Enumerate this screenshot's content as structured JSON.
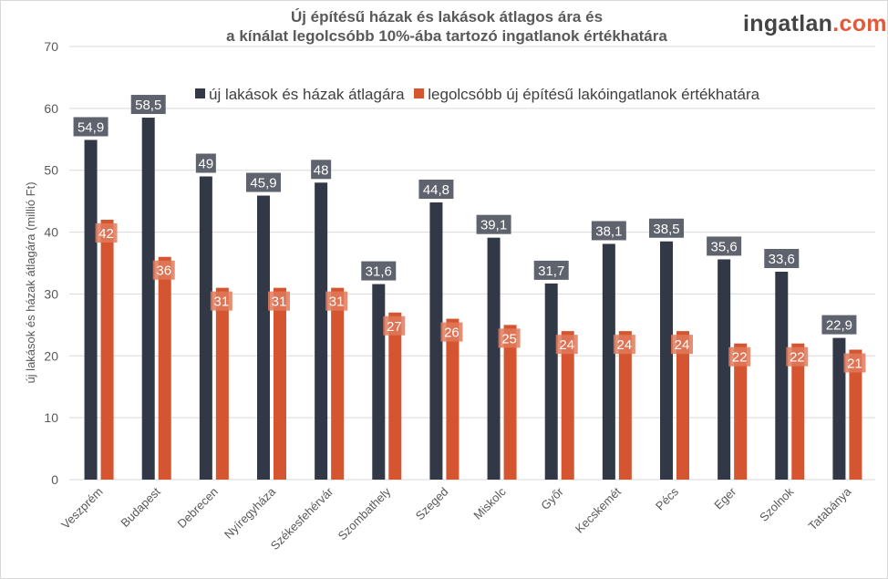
{
  "logo": {
    "main": "ingatlan",
    "suffix": ".com"
  },
  "chart_data": {
    "type": "bar",
    "title": "Új építésű házak és lakások átlagos ára és a kínálat legolcsóbb 10%-ába tartozó ingatlanok értékhatára",
    "title_lines": [
      "Új építésű házak és lakások átlagos ára és",
      "a kínálat legolcsóbb 10%-ába tartozó ingatlanok értékhatára"
    ],
    "xlabel": "",
    "ylabel": "új lakások és házak átlagára (millió Ft)",
    "ylim": [
      0,
      70
    ],
    "yticks": [
      0,
      10,
      20,
      30,
      40,
      50,
      60,
      70
    ],
    "grid": true,
    "legend_position": "top-center",
    "categories": [
      "Veszprém",
      "Budapest",
      "Debrecen",
      "Nyíregyháza",
      "Székesfehérvár",
      "Szombathely",
      "Szeged",
      "Miskolc",
      "Győr",
      "Kecskemét",
      "Pécs",
      "Eger",
      "Szolnok",
      "Tatabánya"
    ],
    "series": [
      {
        "name": "új lakások és házak átlagára",
        "color": "#323845",
        "label_bg": "#5f636e",
        "values": [
          54.9,
          58.5,
          49,
          45.9,
          48,
          31.6,
          44.8,
          39.1,
          31.7,
          38.1,
          38.5,
          35.6,
          33.6,
          22.9
        ],
        "labels": [
          "54,9",
          "58,5",
          "49",
          "45,9",
          "48",
          "31,6",
          "44,8",
          "39,1",
          "31,7",
          "38,1",
          "38,5",
          "35,6",
          "33,6",
          "22,9"
        ]
      },
      {
        "name": "legolcsóbb új építésű lakóingatlanok értékhatára",
        "color": "#d55530",
        "label_bg": "#e07a5c",
        "values": [
          42,
          36,
          31,
          31,
          31,
          27,
          26,
          25,
          24,
          24,
          24,
          22,
          22,
          21
        ],
        "labels": [
          "42",
          "36",
          "31",
          "31",
          "31",
          "27",
          "26",
          "25",
          "24",
          "24",
          "24",
          "22",
          "22",
          "21"
        ]
      }
    ]
  }
}
